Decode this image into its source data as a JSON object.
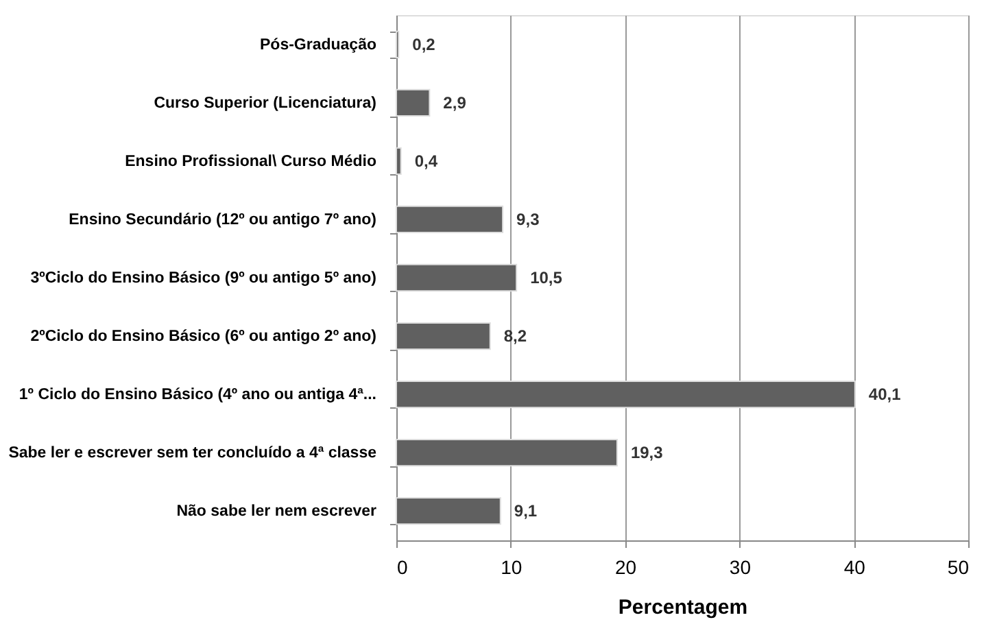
{
  "chart_data": {
    "type": "bar",
    "orientation": "horizontal",
    "xlabel": "Percentagem",
    "categories": [
      "Pós-Graduação",
      "Curso Superior (Licenciatura)",
      "Ensino Profissional\\ Curso Médio",
      "Ensino Secundário (12º ou antigo 7º ano)",
      "3ºCiclo do Ensino Básico (9º ou antigo 5º ano)",
      "2ºCiclo do Ensino Básico (6º ou antigo 2º ano)",
      "1º Ciclo do Ensino Básico (4º ano ou antiga 4ª...",
      "Sabe ler e escrever sem ter concluído a 4ª classe",
      "Não sabe ler nem escrever"
    ],
    "values": [
      0.2,
      2.9,
      0.4,
      9.3,
      10.5,
      8.2,
      40.1,
      19.3,
      9.1
    ],
    "value_labels": [
      "0,2",
      "2,9",
      "0,4",
      "9,3",
      "10,5",
      "8,2",
      "40,1",
      "19,3",
      "9,1"
    ],
    "color": "#606060",
    "xlim": [
      0,
      50
    ],
    "xticks": [
      0,
      10,
      20,
      30,
      40,
      50
    ],
    "grid": "x"
  }
}
